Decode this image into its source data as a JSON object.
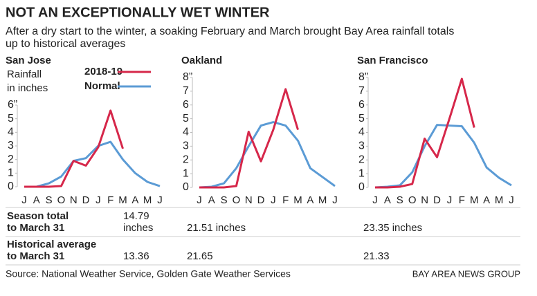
{
  "title": "NOT AN EXCEPTIONALLY WET WINTER",
  "subtitle": [
    "After a dry start to the winter, a soaking February and March brought Bay Area rainfall totals",
    "up to historical averages"
  ],
  "chart_data": [
    {
      "type": "line",
      "title": "San Jose",
      "ylabel": [
        "Rainfall",
        "in inches"
      ],
      "show_legend": true,
      "categories": [
        "J",
        "A",
        "S",
        "O",
        "N",
        "D",
        "J",
        "F",
        "M",
        "A",
        "M",
        "J"
      ],
      "series": [
        {
          "name": "2018-19",
          "color": "#d6274a",
          "values": [
            0,
            0,
            0,
            0.05,
            1.9,
            1.55,
            2.9,
            5.6,
            2.8,
            null,
            null,
            null
          ]
        },
        {
          "name": "Normal",
          "color": "#5b9bd5",
          "values": [
            0,
            0,
            0.25,
            0.75,
            1.9,
            2.1,
            3.0,
            3.3,
            2.0,
            1.0,
            0.35,
            0.05
          ]
        }
      ],
      "ylim": [
        0,
        6
      ],
      "yticks": [
        0,
        1,
        2,
        3,
        4,
        5,
        {
          "value": 6,
          "label": "6”"
        }
      ],
      "grid": false
    },
    {
      "type": "line",
      "title": "Oakland",
      "categories": [
        "J",
        "A",
        "S",
        "O",
        "N",
        "D",
        "J",
        "F",
        "M",
        "A",
        "M",
        "J"
      ],
      "series": [
        {
          "name": "2018-19",
          "color": "#d6274a",
          "values": [
            0,
            0,
            0,
            0.1,
            4.05,
            1.9,
            4.2,
            7.15,
            4.2,
            null,
            null,
            null
          ]
        },
        {
          "name": "Normal",
          "color": "#5b9bd5",
          "values": [
            0,
            0.05,
            0.3,
            1.4,
            3.0,
            4.5,
            4.75,
            4.5,
            3.4,
            1.4,
            0.75,
            0.1
          ]
        }
      ],
      "ylim": [
        0,
        8
      ],
      "yticks": [
        0,
        1,
        2,
        3,
        4,
        5,
        6,
        7,
        {
          "value": 8,
          "label": "8”"
        }
      ],
      "grid": false
    },
    {
      "type": "line",
      "title": "San Francisco",
      "categories": [
        "J",
        "A",
        "S",
        "O",
        "N",
        "D",
        "J",
        "F",
        "M",
        "A",
        "M",
        "J"
      ],
      "series": [
        {
          "name": "2018-19",
          "color": "#d6274a",
          "values": [
            0,
            0,
            0.05,
            0.25,
            3.55,
            2.2,
            5.0,
            7.9,
            4.35,
            null,
            null,
            null
          ]
        },
        {
          "name": "Normal",
          "color": "#5b9bd5",
          "values": [
            0,
            0.05,
            0.15,
            1.1,
            3.0,
            4.55,
            4.5,
            4.45,
            3.25,
            1.45,
            0.7,
            0.15
          ]
        }
      ],
      "ylim": [
        0,
        8
      ],
      "yticks": [
        0,
        1,
        2,
        3,
        4,
        5,
        6,
        7,
        {
          "value": 8,
          "label": "8”"
        }
      ],
      "grid": false
    }
  ],
  "table": {
    "rows": [
      {
        "label": [
          "Season total",
          "to March 31"
        ],
        "values": [
          [
            "14.79",
            "inches"
          ],
          [
            "21.51 inches"
          ],
          [
            "23.35 inches"
          ]
        ]
      },
      {
        "label": [
          "Historical average",
          "to March 31"
        ],
        "values": [
          [
            "13.36"
          ],
          [
            "21.65"
          ],
          [
            "21.33"
          ]
        ]
      }
    ]
  },
  "source": "Source: National Weather Service, Golden Gate Weather Services",
  "credit": "BAY AREA NEWS GROUP"
}
